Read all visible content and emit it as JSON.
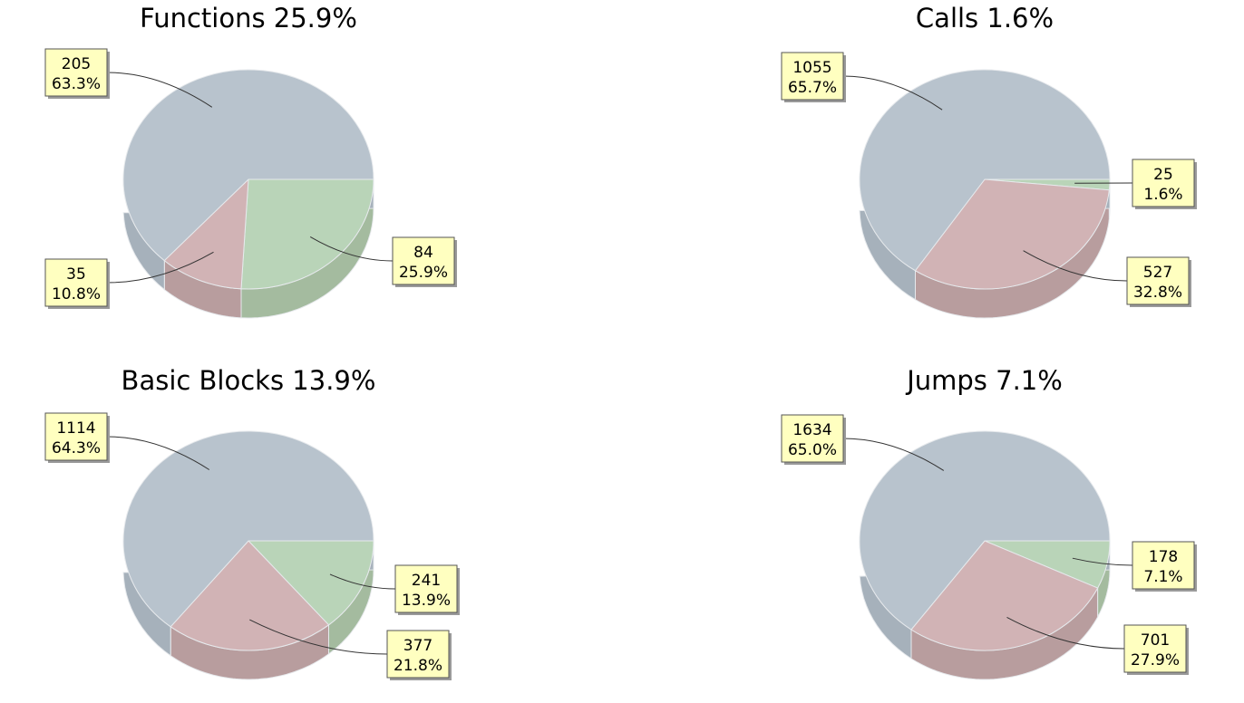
{
  "colors": {
    "blue": "#b8c3cd",
    "blue_side": "#a6b1bb",
    "green": "#b9d4b8",
    "green_side": "#a4bb9f",
    "red": "#d1b3b5",
    "red_side": "#b89d9e",
    "label_bg": "#ffffc0",
    "label_border": "#555555",
    "edge": "#e6e9ec"
  },
  "chart_data": [
    {
      "type": "pie",
      "title": "Functions 25.9%",
      "slices": [
        {
          "value": 84,
          "percent": "25.9%",
          "color": "green"
        },
        {
          "value": 35,
          "percent": "10.8%",
          "color": "red"
        },
        {
          "value": 205,
          "percent": "63.3%",
          "color": "blue"
        }
      ]
    },
    {
      "type": "pie",
      "title": "Calls 1.6%",
      "slices": [
        {
          "value": 25,
          "percent": "1.6%",
          "color": "green"
        },
        {
          "value": 527,
          "percent": "32.8%",
          "color": "red"
        },
        {
          "value": 1055,
          "percent": "65.7%",
          "color": "blue"
        }
      ]
    },
    {
      "type": "pie",
      "title": "Basic Blocks 13.9%",
      "slices": [
        {
          "value": 241,
          "percent": "13.9%",
          "color": "green"
        },
        {
          "value": 377,
          "percent": "21.8%",
          "color": "red"
        },
        {
          "value": 1114,
          "percent": "64.3%",
          "color": "blue"
        }
      ]
    },
    {
      "type": "pie",
      "title": "Jumps 7.1%",
      "slices": [
        {
          "value": 178,
          "percent": "7.1%",
          "color": "green"
        },
        {
          "value": 701,
          "percent": "27.9%",
          "color": "red"
        },
        {
          "value": 1634,
          "percent": "65.0%",
          "color": "blue"
        }
      ]
    }
  ]
}
